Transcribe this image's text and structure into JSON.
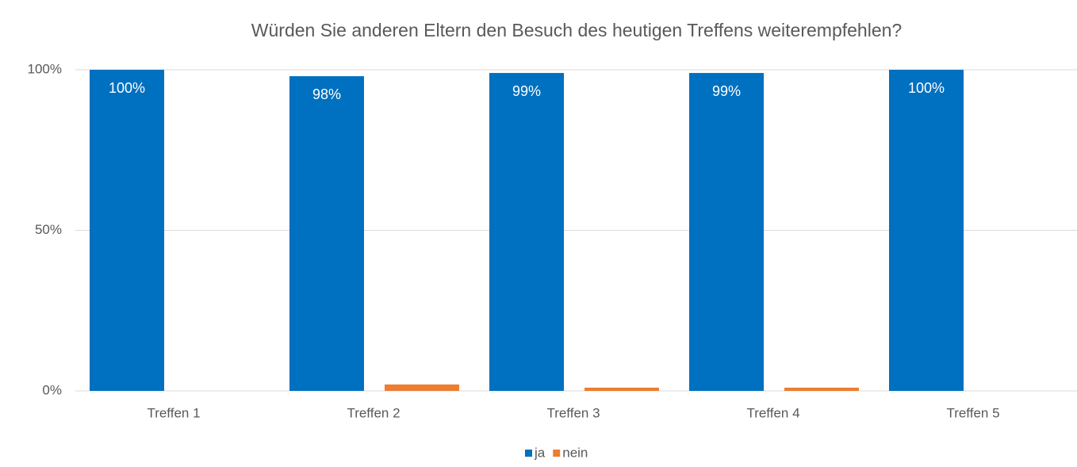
{
  "chart_data": {
    "type": "bar",
    "title": "Würden Sie anderen Eltern den Besuch des heutigen Treffens weiterempfehlen?",
    "categories": [
      "Treffen 1",
      "Treffen 2",
      "Treffen 3",
      "Treffen 4",
      "Treffen 5"
    ],
    "series": [
      {
        "name": "ja",
        "color": "#0070c0",
        "values": [
          100,
          98,
          99,
          99,
          100
        ],
        "value_labels": [
          "100%",
          "98%",
          "99%",
          "99%",
          "100%"
        ]
      },
      {
        "name": "nein",
        "color": "#ed7d31",
        "values": [
          0,
          2,
          1,
          1,
          0
        ]
      }
    ],
    "ylim": [
      0,
      100
    ],
    "yticks": [
      {
        "value": 0,
        "label": "0%"
      },
      {
        "value": 50,
        "label": "50%"
      },
      {
        "value": 100,
        "label": "100%"
      }
    ],
    "grid": true,
    "legend": "bottom"
  }
}
